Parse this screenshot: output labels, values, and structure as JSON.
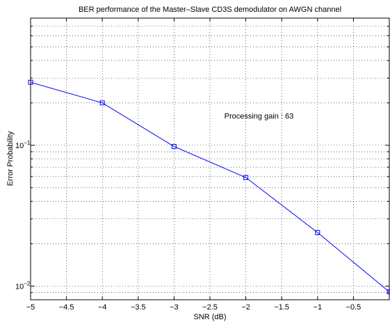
{
  "chart_data": {
    "type": "line",
    "title": "BER performance of the Master–Slave CD3S demodulator on AWGN channel",
    "xlabel": "SNR (dB)",
    "ylabel": "Error Probability",
    "xlim": [
      -5,
      0
    ],
    "ylim": [
      0.008,
      0.8
    ],
    "yscale": "log",
    "grid": true,
    "x_ticks": [
      -5,
      -4.5,
      -4,
      -3.5,
      -3,
      -2.5,
      -2,
      -1.5,
      -1,
      -0.5
    ],
    "x_tick_labels": [
      "−5",
      "−4.5",
      "−4",
      "−3.5",
      "−3",
      "−2.5",
      "−2",
      "−1.5",
      "−1",
      "−0.5"
    ],
    "y_ticks": [
      0.1,
      0.01
    ],
    "y_tick_labels": [
      {
        "base": "10",
        "exp": "−1"
      },
      {
        "base": "10",
        "exp": "−2"
      }
    ],
    "series": [
      {
        "color": "#0000ff",
        "marker": "square",
        "x": [
          -5,
          -4,
          -3,
          -2,
          -1,
          0
        ],
        "y": [
          0.28,
          0.2,
          0.098,
          0.059,
          0.024,
          0.0091
        ]
      }
    ],
    "annotations": [
      {
        "text": "Processing gain : 63",
        "x": -2.3,
        "y": 0.155
      }
    ]
  }
}
